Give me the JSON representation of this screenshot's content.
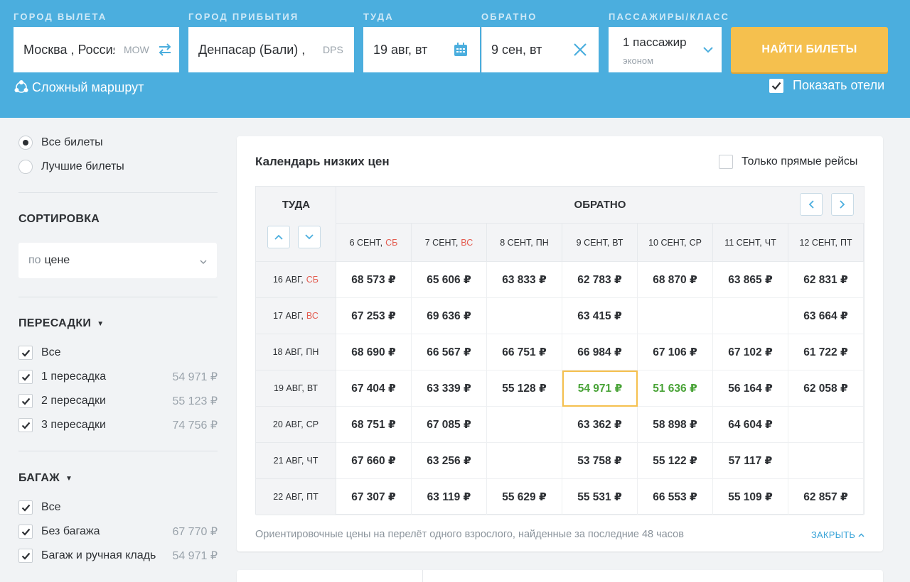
{
  "header": {
    "origin": {
      "label": "ГОРОД ВЫЛЕТА",
      "value": "Москва , Россия",
      "code": "MOW"
    },
    "destination": {
      "label": "ГОРОД ПРИБЫТИЯ",
      "value": "Денпасар (Бали) ,",
      "code": "DPS"
    },
    "depart": {
      "label": "ТУДА",
      "value": "19 авг, вт"
    },
    "return": {
      "label": "ОБРАТНО",
      "value": "9 сен, вт"
    },
    "passengers": {
      "label": "ПАССАЖИРЫ/КЛАСС",
      "value": "1 пассажир",
      "class": "эконом"
    },
    "search_button": "НАЙТИ БИЛЕТЫ",
    "complex_route": "Сложный маршрут",
    "show_hotels": "Показать отели",
    "colors": {
      "background": "#4baede",
      "button": "#f5c04e"
    }
  },
  "sidebar": {
    "ticket_filter": [
      {
        "label": "Все билеты",
        "selected": true
      },
      {
        "label": "Лучшие билеты",
        "selected": false
      }
    ],
    "sort": {
      "title": "СОРТИРОВКА",
      "prefix": "по",
      "value": "цене"
    },
    "transfers": {
      "title": "ПЕРЕСАДКИ",
      "items": [
        {
          "label": "Все",
          "price": "",
          "checked": true
        },
        {
          "label": "1 пересадка",
          "price": "54 971 ₽",
          "checked": true
        },
        {
          "label": "2 пересадки",
          "price": "55 123 ₽",
          "checked": true
        },
        {
          "label": "3 пересадки",
          "price": "74 756 ₽",
          "checked": true
        }
      ]
    },
    "baggage": {
      "title": "БАГАЖ",
      "items": [
        {
          "label": "Все",
          "price": "",
          "checked": true
        },
        {
          "label": "Без багажа",
          "price": "67 770 ₽",
          "checked": true
        },
        {
          "label": "Багаж и ручная кладь",
          "price": "54 971 ₽",
          "checked": true
        }
      ]
    }
  },
  "calendar": {
    "title": "Календарь низких цен",
    "direct_only": "Только прямые рейсы",
    "depart_header": "ТУДА",
    "return_header": "ОБРАТНО",
    "columns": [
      {
        "date": "6 СЕНТ,",
        "day": "СБ",
        "weekend": true
      },
      {
        "date": "7 СЕНТ,",
        "day": "ВС",
        "weekend": true
      },
      {
        "date": "8 СЕНТ,",
        "day": "ПН",
        "weekend": false
      },
      {
        "date": "9 СЕНТ,",
        "day": "ВТ",
        "weekend": false
      },
      {
        "date": "10 СЕНТ,",
        "day": "СР",
        "weekend": false
      },
      {
        "date": "11 СЕНТ,",
        "day": "ЧТ",
        "weekend": false
      },
      {
        "date": "12 СЕНТ,",
        "day": "ПТ",
        "weekend": false
      }
    ],
    "rows": [
      {
        "date": "16 АВГ,",
        "day": "СБ",
        "weekend": true,
        "prices": [
          "68 573 ₽",
          "65 606 ₽",
          "63 833 ₽",
          "62 783 ₽",
          "68 870 ₽",
          "63 865 ₽",
          "62 831 ₽"
        ]
      },
      {
        "date": "17 АВГ,",
        "day": "ВС",
        "weekend": true,
        "prices": [
          "67 253 ₽",
          "69 636 ₽",
          "",
          "63 415 ₽",
          "",
          "",
          "63 664 ₽"
        ]
      },
      {
        "date": "18 АВГ,",
        "day": "ПН",
        "weekend": false,
        "prices": [
          "68 690 ₽",
          "66 567 ₽",
          "66 751 ₽",
          "66 984 ₽",
          "67 106 ₽",
          "67 102 ₽",
          "61 722 ₽"
        ]
      },
      {
        "date": "19 АВГ,",
        "day": "ВТ",
        "weekend": false,
        "prices": [
          "67 404 ₽",
          "63 339 ₽",
          "55 128 ₽",
          "54 971 ₽",
          "51 636 ₽",
          "56 164 ₽",
          "62 058 ₽"
        ]
      },
      {
        "date": "20 АВГ,",
        "day": "СР",
        "weekend": false,
        "prices": [
          "68 751 ₽",
          "67 085 ₽",
          "",
          "63 362 ₽",
          "58 898 ₽",
          "64 604 ₽",
          ""
        ]
      },
      {
        "date": "21 АВГ,",
        "day": "ЧТ",
        "weekend": false,
        "prices": [
          "67 660 ₽",
          "63 256 ₽",
          "",
          "53 758 ₽",
          "55 122 ₽",
          "57 117 ₽",
          ""
        ]
      },
      {
        "date": "22 АВГ,",
        "day": "ПТ",
        "weekend": false,
        "prices": [
          "67 307 ₽",
          "63 119 ₽",
          "55 629 ₽",
          "55 531 ₽",
          "66 553 ₽",
          "55 109 ₽",
          "62 857 ₽"
        ]
      }
    ],
    "selected_cell": {
      "row": 3,
      "col": 3
    },
    "green_cells": [
      {
        "row": 3,
        "col": 3
      },
      {
        "row": 3,
        "col": 4
      }
    ],
    "footnote": "Ориентировочные цены на перелёт одного взрослого, найденные за последние 48 часов",
    "close_label": "ЗАКРЫТЬ",
    "colors": {
      "weekend": "#e35b4f",
      "green": "#49a337",
      "selected_border": "#f5c04e"
    }
  }
}
